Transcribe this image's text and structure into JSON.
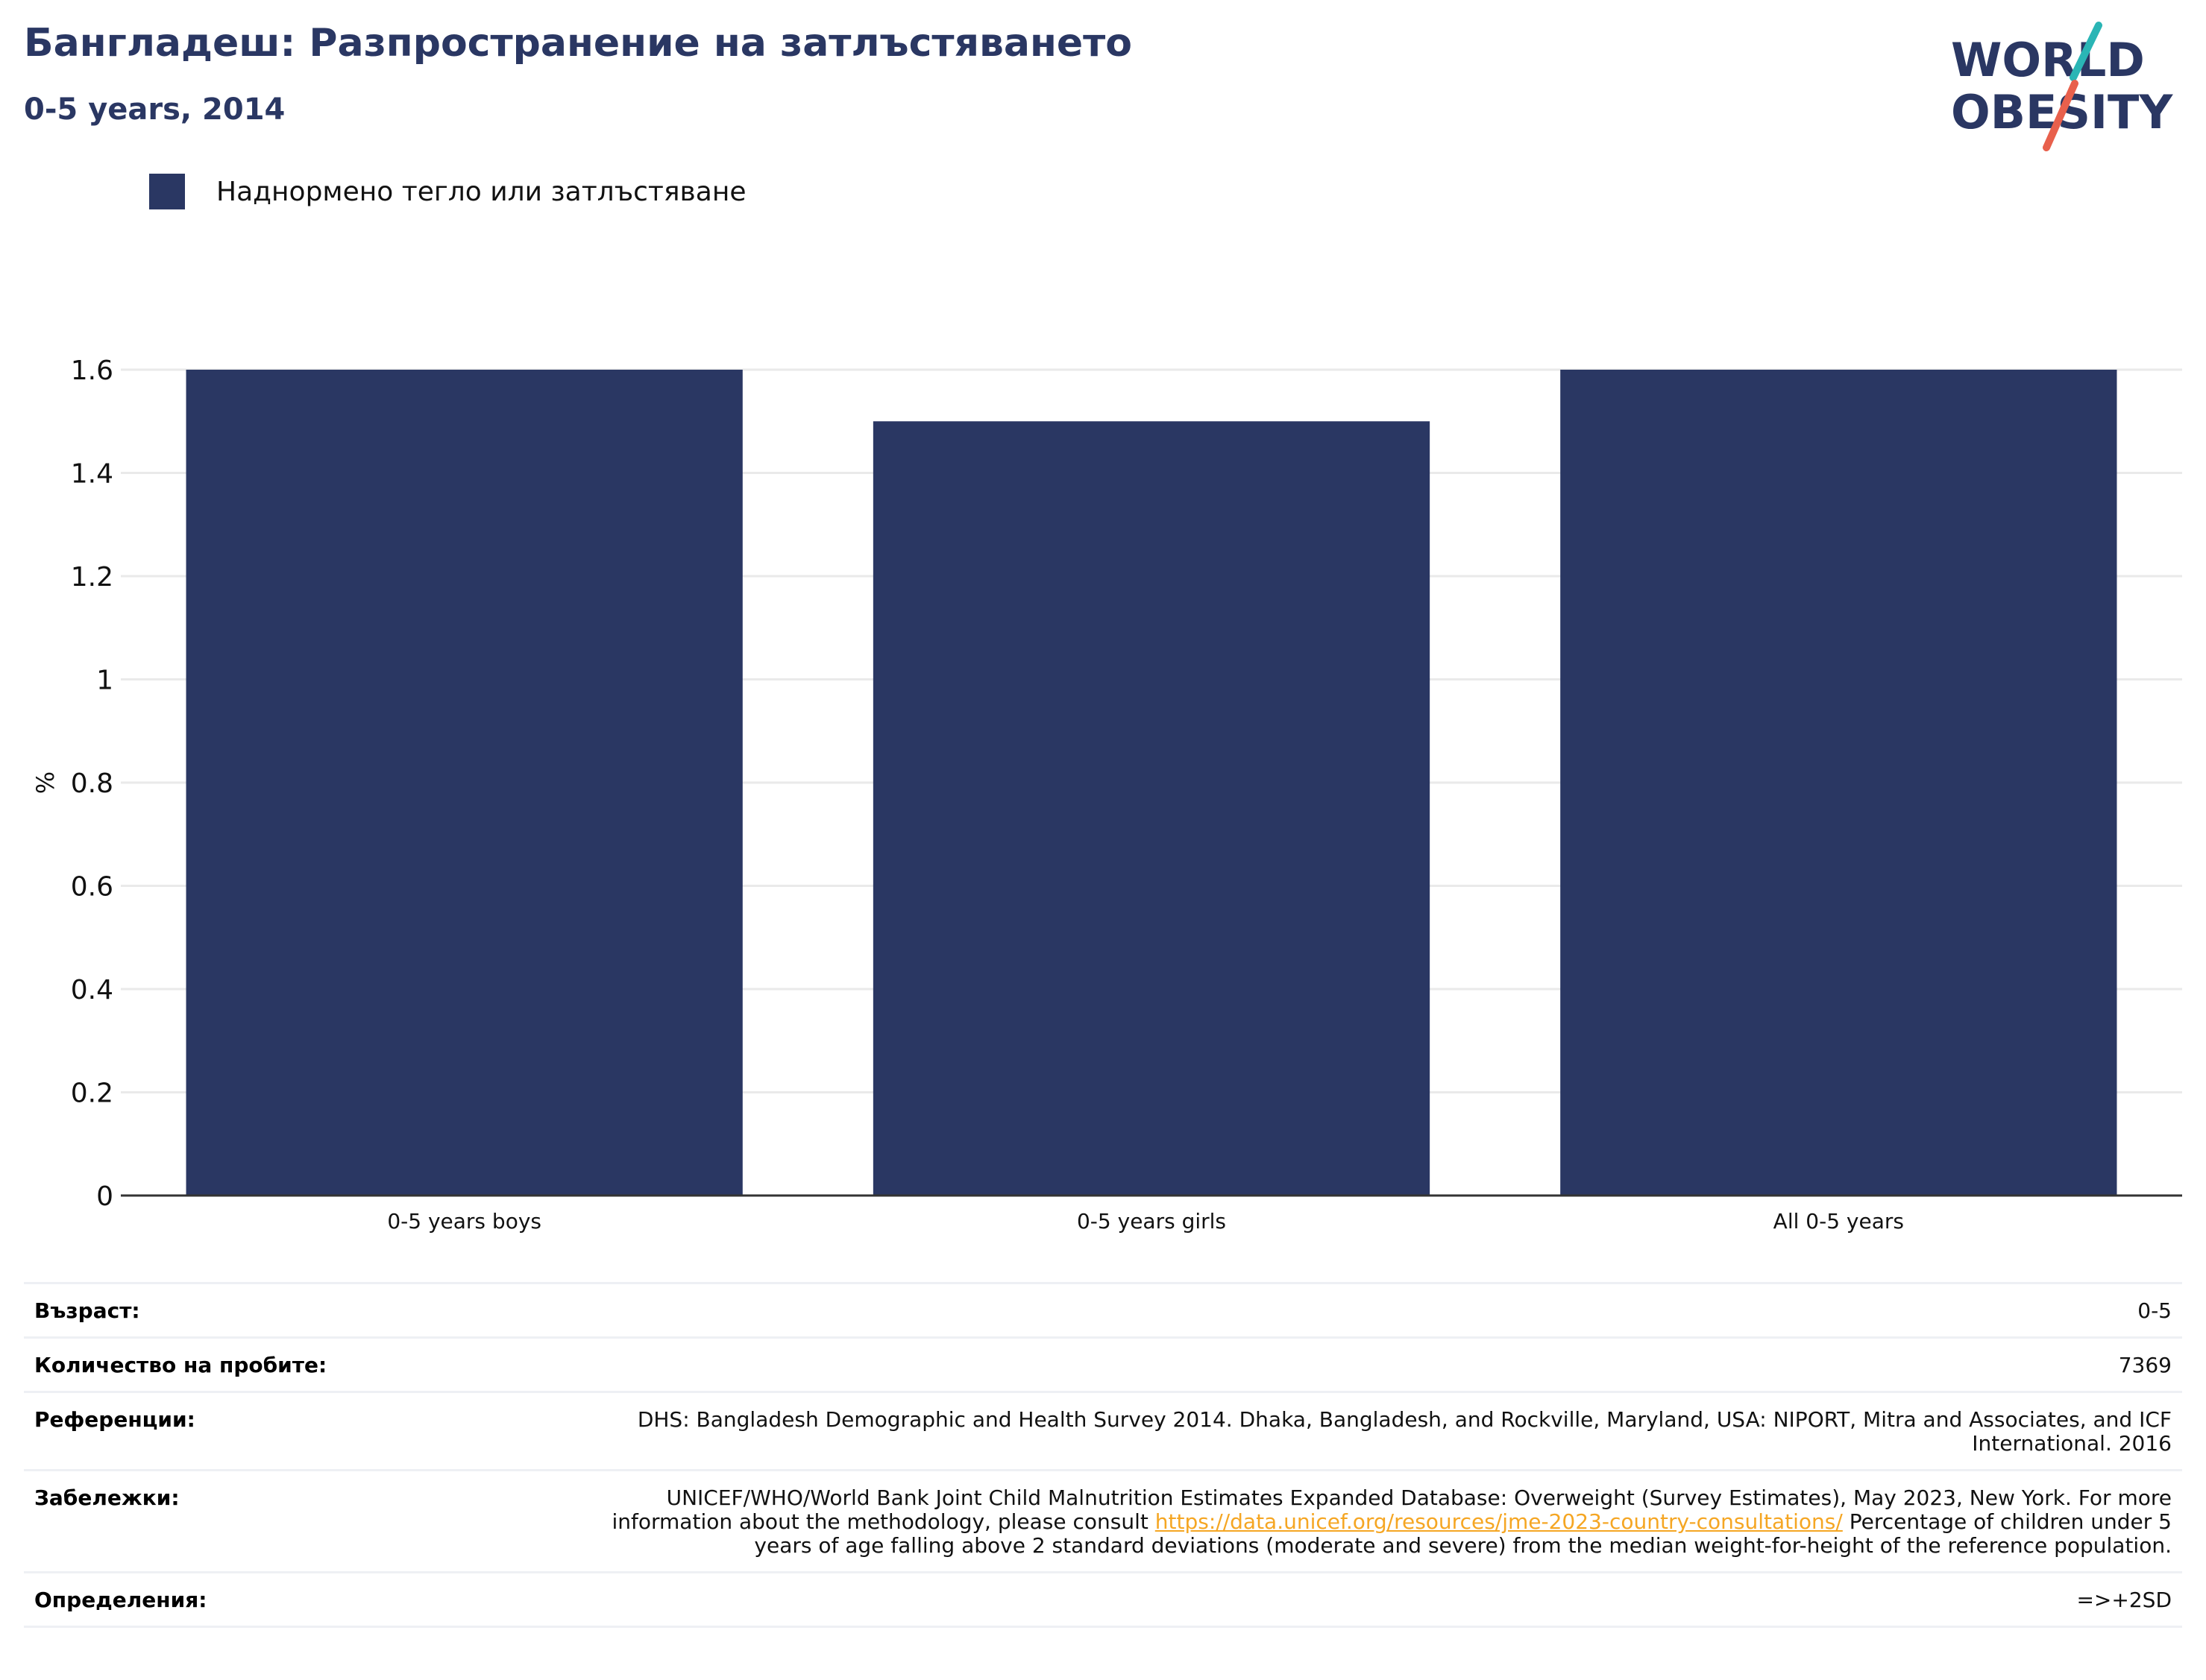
{
  "header": {
    "title": "Бангладеш: Разпространение на затлъстяването",
    "subtitle": "0-5 years, 2014"
  },
  "logo": {
    "line1": "WORLD",
    "line2": "OBESITY"
  },
  "colors": {
    "bar": "#2a3763",
    "grid": "#eaeaea",
    "axis": "#333333",
    "link": "#f5a623",
    "logo_text": "#2a3763",
    "logo_teal": "#2ab5b5",
    "logo_coral": "#e8604c"
  },
  "legend": {
    "label": "Наднормено тегло или затлъстяване"
  },
  "chart_data": {
    "type": "bar",
    "categories": [
      "0-5 years boys",
      "0-5 years girls",
      "All 0-5 years"
    ],
    "series": [
      {
        "name": "Наднормено тегло или затлъстяване",
        "values": [
          1.6,
          1.5,
          1.6
        ]
      }
    ],
    "ylabel": "%",
    "xlabel": "",
    "ylim": [
      0,
      1.6
    ],
    "yticks": [
      0,
      0.2,
      0.4,
      0.6,
      0.8,
      1,
      1.2,
      1.4,
      1.6
    ],
    "ytick_labels": [
      "0",
      "0.2",
      "0.4",
      "0.6",
      "0.8",
      "1",
      "1.2",
      "1.4",
      "1.6"
    ],
    "grid": true,
    "legend_position": "top-left"
  },
  "info": {
    "age": {
      "key": "Възраст:",
      "value": "0-5"
    },
    "sample": {
      "key": "Количество на пробите:",
      "value": "7369"
    },
    "references": {
      "key": "Референции:",
      "value": "DHS: Bangladesh Demographic and Health Survey 2014. Dhaka, Bangladesh, and Rockville, Maryland, USA: NIPORT, Mitra and Associates, and ICF International. 2016"
    },
    "notes": {
      "key": "Забележки:",
      "before": "UNICEF/WHO/World Bank Joint Child Malnutrition Estimates Expanded Database: Overweight (Survey Estimates), May 2023, New York. For more information about the methodology, please consult ",
      "link": "https://data.unicef.org/resources/jme-2023-country-consultations/",
      "after": " Percentage of children under 5 years of age falling above 2 standard deviations (moderate and severe) from the median weight-for-height of the reference population."
    },
    "definitions": {
      "key": "Определения:",
      "value": "=>+2SD"
    }
  }
}
